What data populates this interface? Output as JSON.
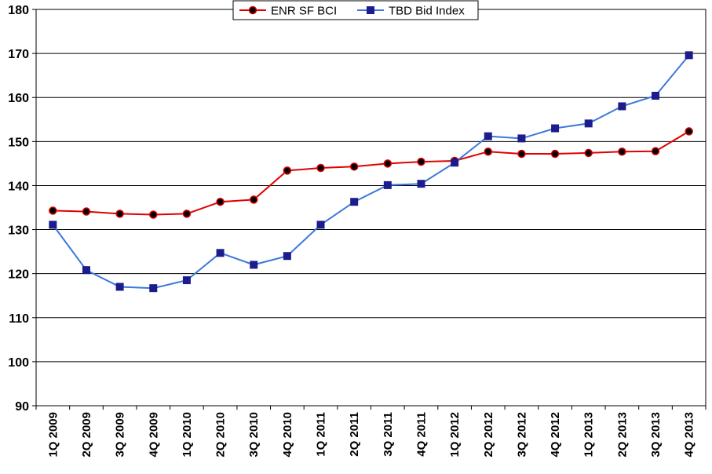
{
  "chart_data": {
    "type": "line",
    "categories": [
      "1Q 2009",
      "2Q 2009",
      "3Q 2009",
      "4Q 2009",
      "1Q 2010",
      "2Q 2010",
      "3Q 2010",
      "4Q 2010",
      "1Q 2011",
      "2Q 2011",
      "3Q 2011",
      "4Q 2011",
      "1Q 2012",
      "2Q 2012",
      "3Q 2012",
      "4Q 2012",
      "1Q 2013",
      "2Q 2013",
      "3Q 2013",
      "4Q 2013"
    ],
    "series": [
      {
        "name": "ENR SF BCI",
        "color": "#e00000",
        "marker": "circle",
        "values": [
          134.3,
          134.1,
          133.6,
          133.4,
          133.6,
          136.3,
          136.8,
          143.4,
          144.0,
          144.3,
          145.0,
          145.4,
          145.6,
          147.7,
          147.2,
          147.2,
          147.4,
          147.7,
          147.8,
          152.3
        ]
      },
      {
        "name": "TBD Bid Index",
        "color": "#3c78d8",
        "marker": "square",
        "values": [
          131.1,
          120.8,
          117.0,
          116.7,
          118.5,
          124.7,
          122.0,
          124.0,
          131.1,
          136.3,
          140.1,
          140.4,
          145.2,
          151.2,
          150.7,
          153.0,
          154.1,
          158.0,
          160.4,
          169.6
        ]
      }
    ],
    "ylim": [
      90,
      180
    ],
    "yticks": [
      90,
      100,
      110,
      120,
      130,
      140,
      150,
      160,
      170,
      180
    ],
    "grid": true,
    "legend": "top-center"
  }
}
